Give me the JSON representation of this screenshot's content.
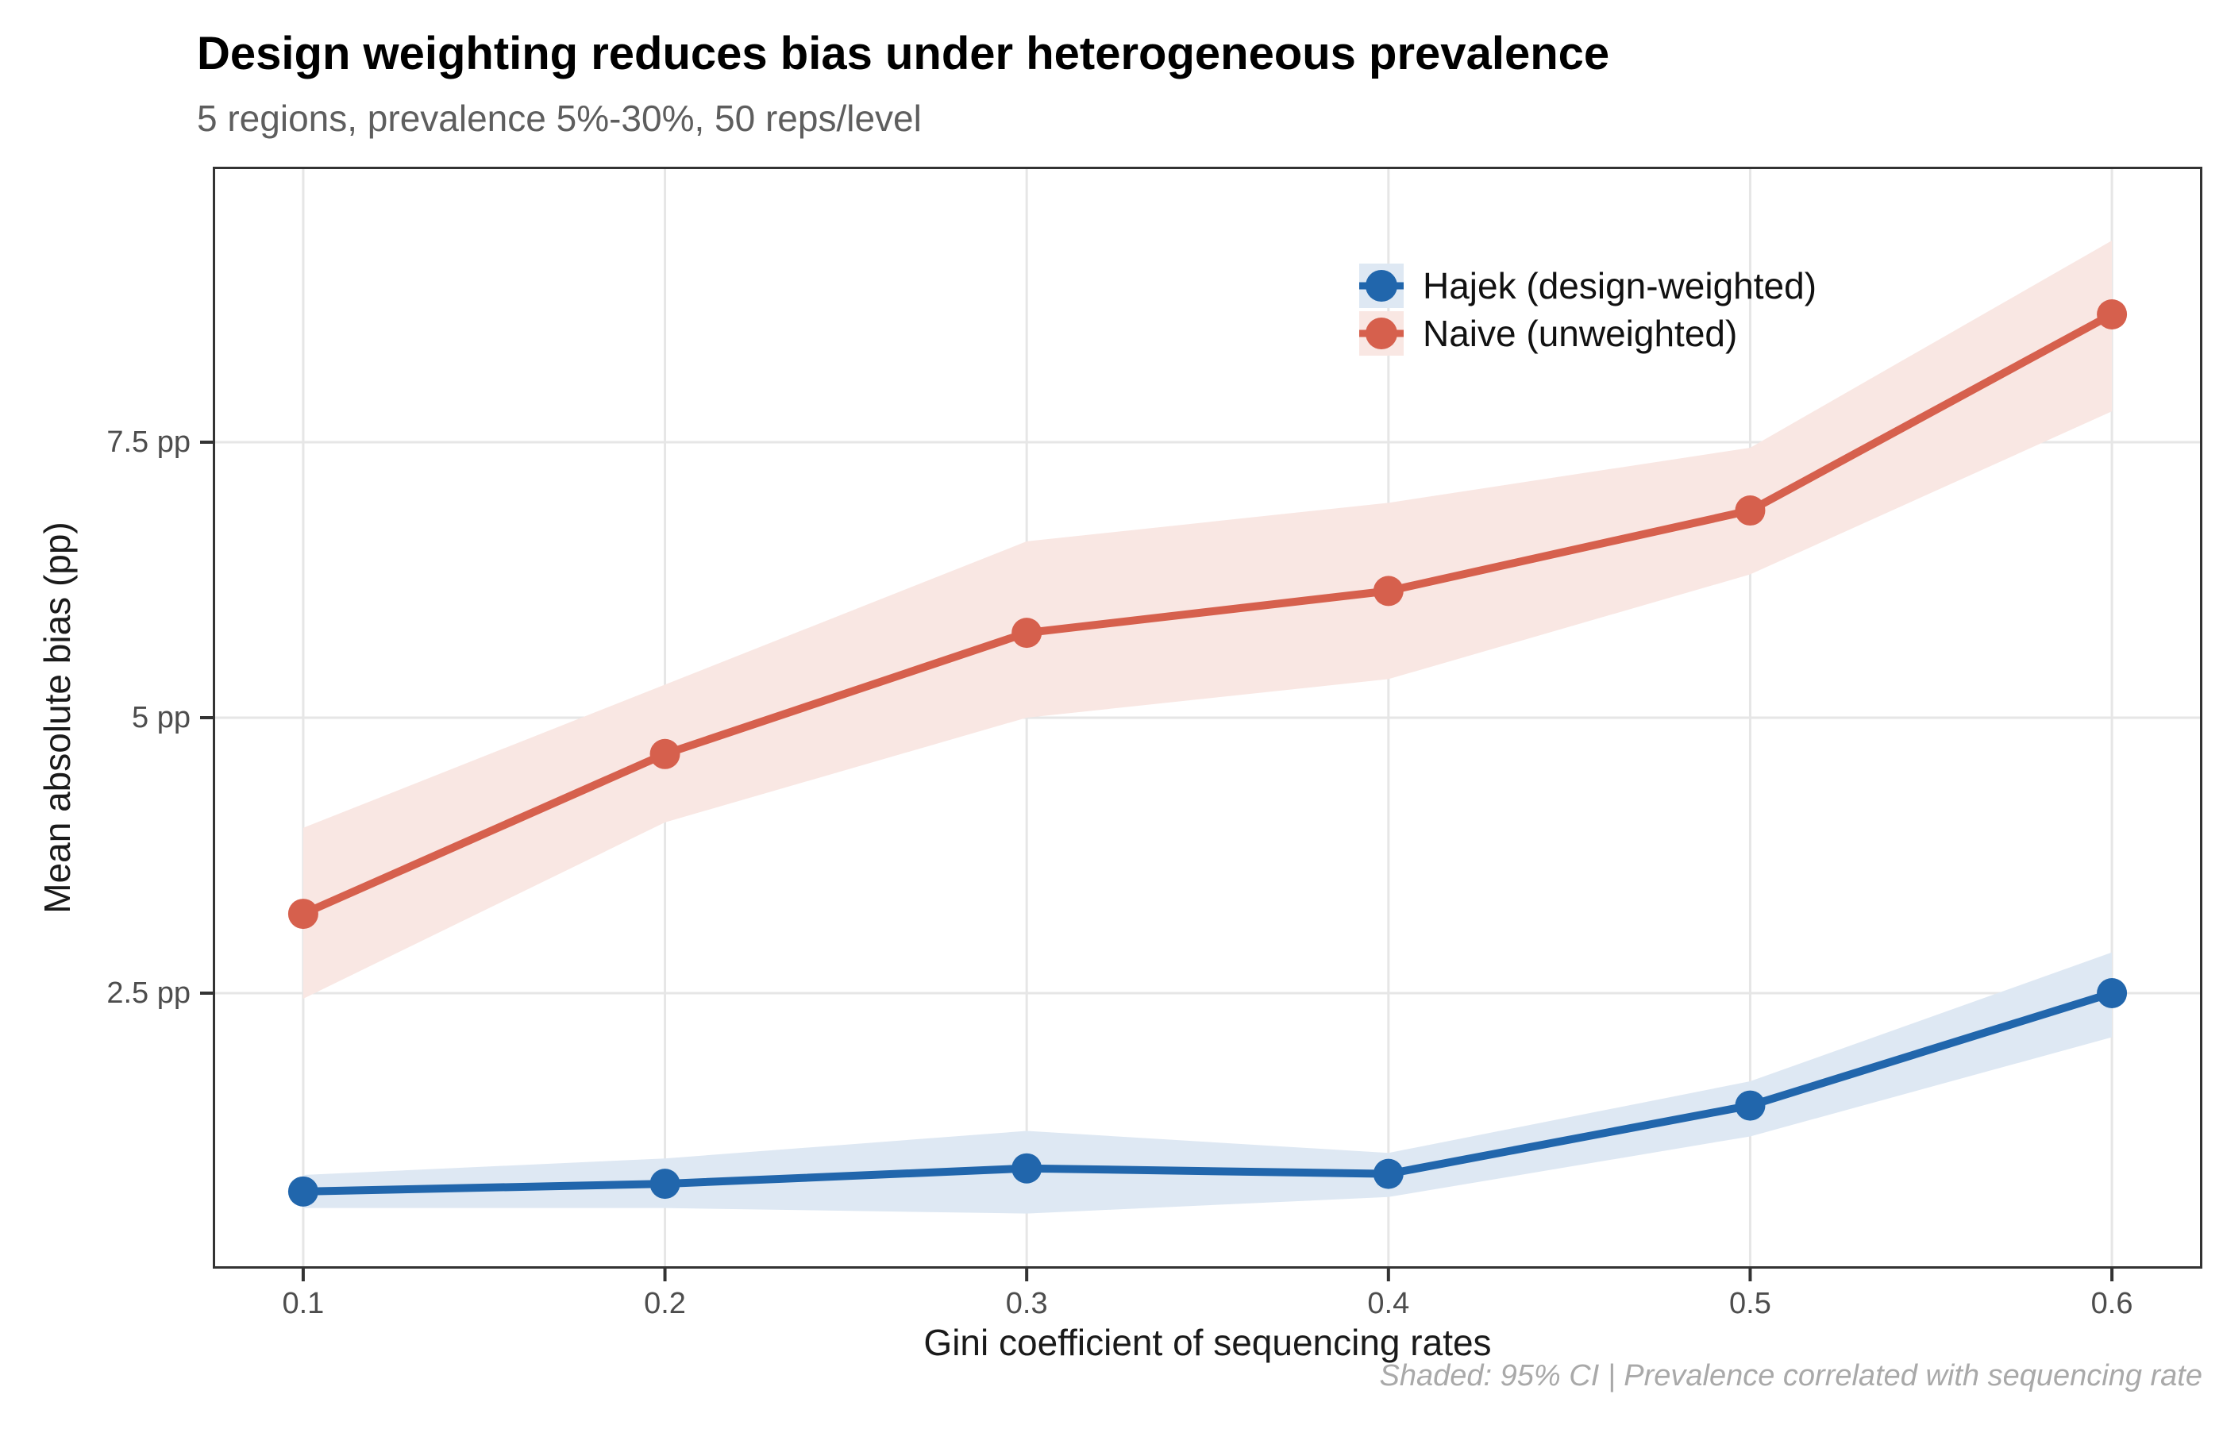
{
  "chart_data": {
    "type": "line",
    "title": "Design weighting reduces bias under heterogeneous prevalence",
    "subtitle": "5 regions, prevalence 5%-30%, 50 reps/level",
    "xlabel": "Gini coefficient of sequencing rates",
    "ylabel": "Mean absolute bias (pp)",
    "caption": "Shaded: 95% CI | Prevalence correlated with sequencing rate",
    "x": [
      0.1,
      0.2,
      0.3,
      0.4,
      0.5,
      0.6
    ],
    "x_tick_labels": [
      "0.1",
      "0.2",
      "0.3",
      "0.4",
      "0.5",
      "0.6"
    ],
    "y_ticks": [
      2.5,
      5,
      7.5
    ],
    "y_tick_labels": [
      "2.5 pp",
      "5 pp",
      "7.5 pp"
    ],
    "xlim": [
      0.075,
      0.625
    ],
    "ylim": [
      0,
      10
    ],
    "grid": "major-only",
    "legend_position": "inside-top-right",
    "series": [
      {
        "name": "Hajek (design-weighted)",
        "color": "#2166ac",
        "ribbon_fill": "#dee8f3",
        "values": [
          0.7,
          0.77,
          0.91,
          0.86,
          1.48,
          2.5
        ],
        "ci_low": [
          0.55,
          0.55,
          0.5,
          0.65,
          1.2,
          2.1
        ],
        "ci_high": [
          0.85,
          1.0,
          1.25,
          1.05,
          1.7,
          2.87
        ]
      },
      {
        "name": "Naive (unweighted)",
        "color": "#d6604d",
        "ribbon_fill": "#f9e7e3",
        "values": [
          3.22,
          4.67,
          5.77,
          6.15,
          6.88,
          8.66
        ],
        "ci_low": [
          2.45,
          4.05,
          5.0,
          5.35,
          6.3,
          7.78
        ],
        "ci_high": [
          4.0,
          5.3,
          6.6,
          6.95,
          7.45,
          9.33
        ]
      }
    ],
    "style_colors": {
      "grid": "#e6e6e6",
      "panel_border": "#333333",
      "tick_mark": "#333333",
      "axis_text": "#4d4d4d"
    }
  }
}
